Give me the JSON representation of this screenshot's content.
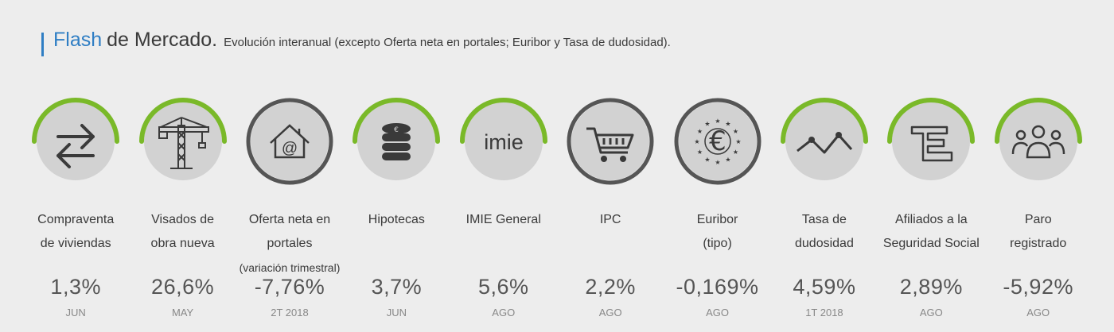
{
  "header": {
    "title_accent": "Flash",
    "title_rest": "de Mercado.",
    "subtitle": "Evolución interanual (excepto Oferta neta en portales; Euribor y Tasa de dudosidad)."
  },
  "colors": {
    "accent": "#2f7ec4",
    "arc_green": "#7ab929",
    "circle": "#d2d2d2",
    "ring": "#555555"
  },
  "indicators": [
    {
      "icon": "swap-arrows-icon",
      "label1": "Compraventa",
      "label2": "de viviendas",
      "value": "1,3%",
      "period": "JUN",
      "arc": true
    },
    {
      "icon": "crane-icon",
      "label1": "Visados de",
      "label2": "obra nueva",
      "value": "26,6%",
      "period": "MAY",
      "arc": true
    },
    {
      "icon": "house-at-icon",
      "label1": "Oferta neta en portales",
      "label2": "(variación trimestral)",
      "value": "-7,76%",
      "period": "2T 2018",
      "arc": false
    },
    {
      "icon": "coins-stack-icon",
      "label1": "Hipotecas",
      "label2": "",
      "value": "3,7%",
      "period": "JUN",
      "arc": true
    },
    {
      "icon": "imie-logo-icon",
      "icon_text": "imie",
      "label1": "IMIE General",
      "label2": "",
      "value": "5,6%",
      "period": "AGO",
      "arc": true
    },
    {
      "icon": "shopping-cart-icon",
      "label1": "IPC",
      "label2": "",
      "value": "2,2%",
      "period": "AGO",
      "arc": false
    },
    {
      "icon": "euro-stars-icon",
      "label1": "Euribor",
      "label2": "(tipo)",
      "value": "-0,169%",
      "period": "AGO",
      "arc": false
    },
    {
      "icon": "trend-line-icon",
      "label1": "Tasa de",
      "label2": "dudosidad",
      "value": "4,59%",
      "period": "1T 2018",
      "arc": true
    },
    {
      "icon": "social-security-icon",
      "label1": "Afiliados a la",
      "label2": "Seguridad Social",
      "value": "2,89%",
      "period": "AGO",
      "arc": true
    },
    {
      "icon": "people-group-icon",
      "label1": "Paro",
      "label2": "registrado",
      "value": "-5,92%",
      "period": "AGO",
      "arc": true
    }
  ]
}
